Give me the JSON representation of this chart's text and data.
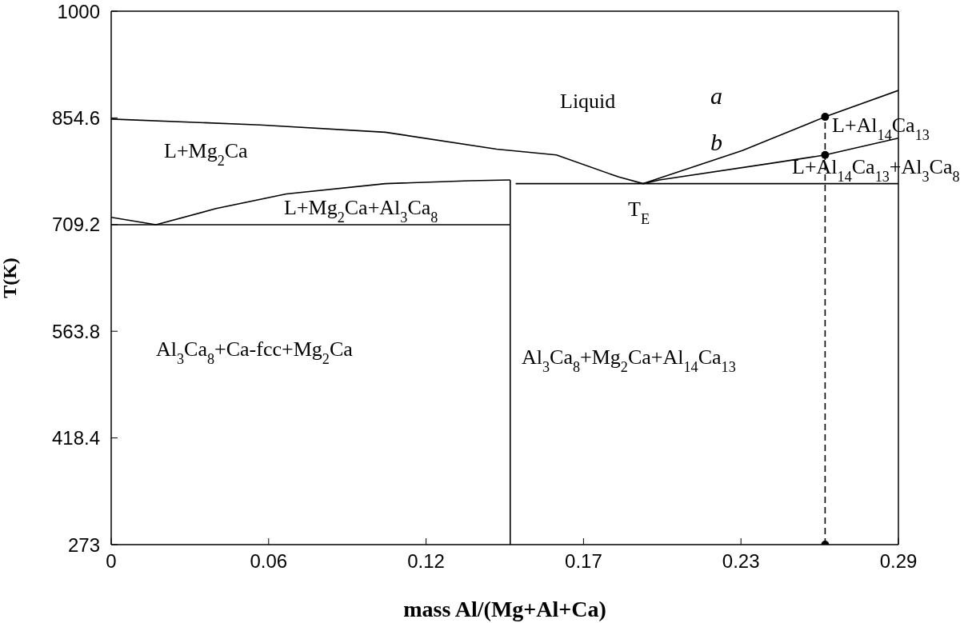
{
  "chart_data": {
    "type": "line",
    "xlabel": "mass Al/(Mg+Al+Ca)",
    "ylabel": "T(K)",
    "xlim": [
      0,
      0.29
    ],
    "xticks": [
      0,
      {
        "value": 0.058,
        "label": "0.06"
      },
      {
        "value": 0.116,
        "label": "0.12"
      },
      {
        "value": 0.174,
        "label": "0.17"
      },
      {
        "value": 0.232,
        "label": "0.23"
      },
      0.29
    ],
    "ylim": [
      273,
      1000
    ],
    "yticks": [
      273,
      418.4,
      563.8,
      709.2,
      854.6,
      1000
    ],
    "grid": false,
    "marker": "none",
    "line_style": "solid",
    "series": [
      {
        "color": "#000000",
        "x": [
          0,
          0.055,
          0.101,
          0.142,
          0.164,
          0.187,
          0.196
        ],
        "values": [
          853,
          845,
          835,
          812,
          804,
          774,
          765
        ]
      },
      {
        "color": "#000000",
        "x": [
          0.196,
          0.2325,
          0.263,
          0.29
        ],
        "values": [
          765,
          810,
          856,
          892
        ]
      },
      {
        "color": "#000000",
        "x": [
          0.196,
          0.202,
          0.2437,
          0.263,
          0.29
        ],
        "values": [
          765,
          770,
          793,
          804,
          827
        ]
      },
      {
        "color": "#000000",
        "x": [
          0.149,
          0.29
        ],
        "values": [
          765,
          765
        ]
      },
      {
        "color": "#000000",
        "x": [
          0,
          0.0165,
          0.0386,
          0.0645,
          0.101,
          0.132,
          0.147
        ],
        "values": [
          719,
          709,
          731,
          751,
          765,
          769,
          770
        ]
      },
      {
        "color": "#000000",
        "x": [
          0,
          0.147
        ],
        "values": [
          709,
          709
        ]
      },
      {
        "color": "#000000",
        "x": [
          0.147,
          0.147
        ],
        "values": [
          273,
          770
        ]
      },
      {
        "color": "#000000",
        "line_style": "dashed",
        "x": [
          0.263,
          0.263
        ],
        "values": [
          273,
          856
        ]
      },
      {
        "type": "scatter",
        "marker": "circle",
        "color": "#000000",
        "x": [
          0.263,
          0.263,
          0.263
        ],
        "values": [
          856,
          804,
          273
        ]
      }
    ],
    "annotations": [
      "Liquid",
      "L+Mg$_{2}$Ca",
      "L+Mg$_{2}$Ca+Al$_{3}$Ca$_{8}$",
      "T$_{E}$",
      "Al$_{3}$Ca$_{8}$+Ca-fcc+Mg$_{2}$Ca",
      "Al$_{3}$Ca$_{8}$+Mg$_{2}$Ca+Al$_{14}$Ca$_{13}$",
      "a",
      "b",
      "L+Al$_{14}$Ca$_{13}$",
      "L+Al$_{14}$Ca$_{13}$+Al$_{3}$Ca$_{8}$"
    ]
  }
}
